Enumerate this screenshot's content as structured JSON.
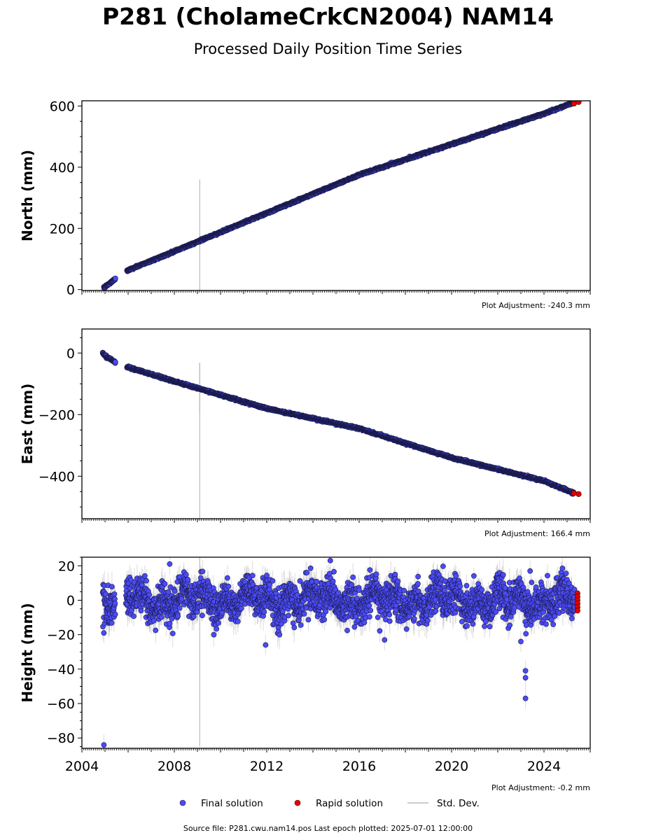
{
  "title": "P281 (CholameCrkCN2004) NAM14",
  "subtitle": "Processed Daily Position Time Series",
  "footer": "Source file: P281.cwu.nam14.pos  Last epoch plotted: 2025-07-01 12:00:00",
  "colors": {
    "final": "#4b4bf5",
    "final_edge": "#1a1a4a",
    "rapid": "#e00000",
    "std_dev": "#999999"
  },
  "legend": {
    "placement": "bottom-center",
    "items": [
      "Final solution",
      "Rapid solution",
      "Std. Dev."
    ]
  },
  "chart_data": [
    {
      "type": "scatter",
      "ylabel": "North (mm)",
      "adjustment": "Plot Adjustment: -240.3 mm",
      "xlim": [
        2004,
        2026
      ],
      "ylim": [
        -3,
        617
      ],
      "yticks": [
        0,
        200,
        400,
        600
      ],
      "grid": false,
      "series": [
        {
          "name": "Final solution",
          "segments": [
            {
              "x": [
                2004.95,
                2005.05,
                2005.2,
                2005.35,
                2005.45
              ],
              "y": [
                5,
                12,
                20,
                30,
                36
              ]
            },
            {
              "x": [
                2005.95,
                2008.0,
                2012.0,
                2016.0,
                2020.0,
                2024.0,
                2025.3
              ],
              "y": [
                62,
                125,
                250,
                375,
                475,
                575,
                612
              ]
            }
          ]
        },
        {
          "name": "Rapid solution",
          "x": [
            2025.3,
            2025.5
          ],
          "y": [
            608,
            613
          ]
        }
      ]
    },
    {
      "type": "scatter",
      "ylabel": "East (mm)",
      "adjustment": "Plot Adjustment: 166.4 mm",
      "xlim": [
        2004,
        2026
      ],
      "ylim": [
        -538,
        78
      ],
      "yticks": [
        0,
        -200,
        -400
      ],
      "grid": false,
      "series": [
        {
          "name": "Final solution",
          "segments": [
            {
              "x": [
                2004.9,
                2005.05,
                2005.2,
                2005.35,
                2005.45
              ],
              "y": [
                0,
                -12,
                -18,
                -25,
                -30
              ]
            },
            {
              "x": [
                2005.95,
                2008.0,
                2012.0,
                2016.0,
                2020.0,
                2024.0,
                2025.3
              ],
              "y": [
                -45,
                -92,
                -180,
                -245,
                -340,
                -415,
                -455
              ]
            }
          ]
        },
        {
          "name": "Rapid solution",
          "x": [
            2025.3,
            2025.5
          ],
          "y": [
            -455,
            -458
          ]
        }
      ]
    },
    {
      "type": "scatter",
      "ylabel": "Height (mm)",
      "adjustment": "Plot Adjustment: -0.2 mm",
      "xlim": [
        2004,
        2026
      ],
      "ylim": [
        -86,
        25
      ],
      "yticks": [
        20,
        0,
        -20,
        -40,
        -60,
        -80
      ],
      "xticks": [
        2004,
        2008,
        2012,
        2016,
        2020,
        2024
      ],
      "grid": false,
      "series": [
        {
          "name": "Final solution",
          "scatter_range": [
            -20,
            20
          ],
          "outliers": [
            {
              "x": 2004.95,
              "y": -84
            },
            {
              "x": 2004.95,
              "y": -19
            },
            {
              "x": 2011.95,
              "y": -26
            },
            {
              "x": 2023.2,
              "y": -57
            },
            {
              "x": 2023.2,
              "y": -45
            },
            {
              "x": 2023.2,
              "y": -41
            },
            {
              "x": 2023.0,
              "y": -24
            },
            {
              "x": 2017.1,
              "y": -23
            },
            {
              "x": 2014.75,
              "y": 23
            },
            {
              "x": 2007.8,
              "y": 21
            },
            {
              "x": 2023.4,
              "y": 17
            }
          ]
        },
        {
          "name": "Rapid solution",
          "x": [
            2025.45,
            2025.45,
            2025.45,
            2025.45,
            2025.45,
            2025.45
          ],
          "y": [
            4,
            2,
            0,
            -2,
            -4,
            -6
          ]
        }
      ]
    }
  ]
}
